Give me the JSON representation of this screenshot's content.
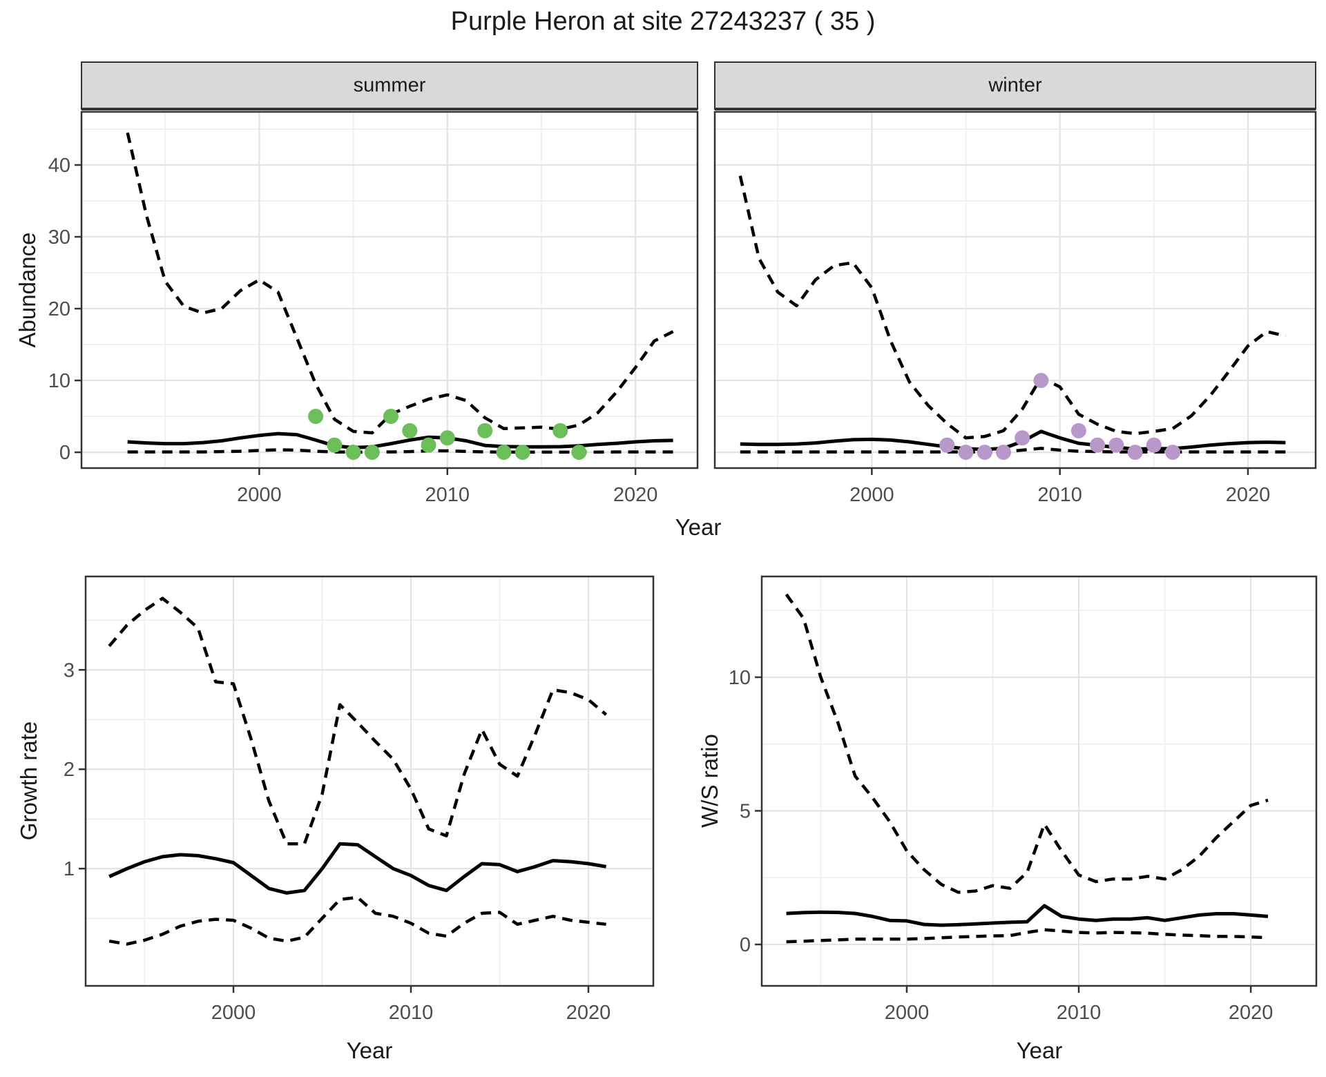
{
  "page": {
    "title": "Purple Heron at site 27243237 ( 35 )"
  },
  "colors": {
    "summer_point": "#6cbe5a",
    "winter_point": "#b897c9",
    "ci_line": "#000000",
    "fit_line": "#000000",
    "strip_bg": "#d9d9d9",
    "strip_text": "#1a1a1a",
    "panel_border": "#333333",
    "grid_major": "#e3e3e3",
    "grid_minor": "#f0f0f0",
    "tick_label": "#4d4d4d",
    "title": "#1a1a1a"
  },
  "chart_data": [
    {
      "type": "line",
      "facet": "summer",
      "xlabel": "Year",
      "ylabel": "Abundance",
      "x_ticks": [
        2000,
        2010,
        2020
      ],
      "x_minor_ticks": [
        1995,
        2005,
        2015
      ],
      "y_ticks": [
        0,
        10,
        20,
        30,
        40
      ],
      "y_minor_ticks": [
        5,
        15,
        25,
        35,
        45
      ],
      "xlim": [
        1990.55,
        2023.3
      ],
      "ylim": [
        -2.2,
        47.4
      ],
      "grid": true,
      "years": [
        1993,
        1994,
        1995,
        1996,
        1997,
        1998,
        1999,
        2000,
        2001,
        2002,
        2003,
        2004,
        2005,
        2006,
        2007,
        2008,
        2009,
        2010,
        2011,
        2012,
        2013,
        2014,
        2015,
        2016,
        2017,
        2018,
        2019,
        2020,
        2021,
        2022
      ],
      "series": [
        {
          "name": "upper_95_ci",
          "style": "dashed",
          "values": [
            44.5,
            33,
            23.8,
            20.3,
            19.4,
            20.0,
            22.5,
            24.0,
            22.3,
            15.9,
            9.5,
            4.6,
            2.9,
            2.7,
            5.3,
            6.4,
            7.4,
            8.0,
            7.2,
            4.8,
            3.3,
            3.4,
            3.5,
            3.2,
            3.8,
            5.5,
            8.4,
            11.8,
            15.5,
            16.8
          ]
        },
        {
          "name": "trend",
          "style": "solid",
          "values": [
            1.45,
            1.3,
            1.2,
            1.2,
            1.35,
            1.6,
            2.0,
            2.35,
            2.6,
            2.45,
            1.7,
            0.9,
            0.65,
            0.75,
            1.2,
            1.7,
            2.1,
            2.0,
            1.6,
            0.95,
            0.8,
            0.75,
            0.75,
            0.78,
            0.9,
            1.1,
            1.25,
            1.45,
            1.6,
            1.65
          ]
        },
        {
          "name": "lower_95_ci",
          "style": "dashed",
          "values": [
            0.05,
            0.05,
            0.05,
            0.05,
            0.05,
            0.1,
            0.15,
            0.25,
            0.35,
            0.3,
            0.15,
            0.05,
            0.02,
            0.02,
            0.05,
            0.1,
            0.2,
            0.2,
            0.12,
            0.05,
            0.02,
            0.02,
            0.02,
            0.02,
            0.02,
            0.02,
            0.05,
            0.05,
            0.05,
            0.05
          ]
        }
      ],
      "points": {
        "name": "observed_counts",
        "x": [
          2003,
          2004,
          2005,
          2006,
          2007,
          2008,
          2009,
          2010,
          2012,
          2013,
          2014,
          2016,
          2017
        ],
        "y": [
          5,
          1,
          0,
          0,
          5,
          3,
          1,
          2,
          3,
          0,
          0,
          3,
          0
        ]
      }
    },
    {
      "type": "line",
      "facet": "winter",
      "xlabel": "Year",
      "ylabel": "Abundance",
      "x_ticks": [
        2000,
        2010,
        2020
      ],
      "x_minor_ticks": [
        1995,
        2005,
        2015
      ],
      "y_ticks": [
        0,
        10,
        20,
        30,
        40
      ],
      "y_minor_ticks": [
        5,
        15,
        25,
        35,
        45
      ],
      "xlim": [
        1991.65,
        2023.6
      ],
      "ylim": [
        -2.2,
        47.4
      ],
      "grid": true,
      "years": [
        1993,
        1994,
        1995,
        1996,
        1997,
        1998,
        1999,
        2000,
        2001,
        2002,
        2003,
        2004,
        2005,
        2006,
        2007,
        2008,
        2009,
        2010,
        2011,
        2012,
        2013,
        2014,
        2015,
        2016,
        2017,
        2018,
        2019,
        2020,
        2021,
        2022
      ],
      "series": [
        {
          "name": "upper_95_ci",
          "style": "dashed",
          "values": [
            38.5,
            27.0,
            22.3,
            20.4,
            24.0,
            26.0,
            26.4,
            22.9,
            15.5,
            9.8,
            6.5,
            4.0,
            2.0,
            2.2,
            3.0,
            6.0,
            10.4,
            9.1,
            5.3,
            3.9,
            2.9,
            2.6,
            2.9,
            3.3,
            5.1,
            7.9,
            11.3,
            14.8,
            16.8,
            16.2
          ]
        },
        {
          "name": "trend",
          "style": "solid",
          "values": [
            1.15,
            1.1,
            1.1,
            1.15,
            1.3,
            1.55,
            1.75,
            1.8,
            1.7,
            1.45,
            1.1,
            0.75,
            0.5,
            0.4,
            0.55,
            1.5,
            2.9,
            2.0,
            1.25,
            0.97,
            0.67,
            0.45,
            0.5,
            0.5,
            0.73,
            1.0,
            1.2,
            1.35,
            1.4,
            1.35
          ]
        },
        {
          "name": "lower_95_ci",
          "style": "dashed",
          "values": [
            0.05,
            0.05,
            0.05,
            0.05,
            0.05,
            0.05,
            0.05,
            0.05,
            0.05,
            0.05,
            0.05,
            0.05,
            0.05,
            0.05,
            0.05,
            0.3,
            0.55,
            0.3,
            0.15,
            0.1,
            0.05,
            0.05,
            0.05,
            0.05,
            0.05,
            0.05,
            0.05,
            0.05,
            0.05,
            0.05
          ]
        }
      ],
      "points": {
        "name": "observed_counts",
        "x": [
          2004,
          2005,
          2006,
          2007,
          2008,
          2009,
          2011,
          2012,
          2013,
          2014,
          2015,
          2016
        ],
        "y": [
          1,
          0,
          0,
          0,
          2,
          10,
          3,
          1,
          1,
          0,
          1,
          0
        ]
      }
    },
    {
      "type": "line",
      "facet": null,
      "xlabel": "Year",
      "ylabel": "Growth rate",
      "x_ticks": [
        2000,
        2010,
        2020
      ],
      "x_minor_ticks": [
        1995,
        2005,
        2015
      ],
      "y_ticks": [
        1,
        2,
        3
      ],
      "y_minor_ticks": [
        0.5,
        1.5,
        2.5,
        3.5
      ],
      "xlim": [
        1991.67,
        2023.66
      ],
      "ylim": [
        -0.18,
        3.94
      ],
      "grid": true,
      "years": [
        1993,
        1994,
        1995,
        1996,
        1997,
        1998,
        1999,
        2000,
        2001,
        2002,
        2003,
        2004,
        2005,
        2006,
        2007,
        2008,
        2009,
        2010,
        2011,
        2012,
        2013,
        2014,
        2015,
        2016,
        2017,
        2018,
        2019,
        2020,
        2021
      ],
      "series": [
        {
          "name": "upper_95_ci",
          "style": "dashed",
          "values": [
            3.24,
            3.45,
            3.6,
            3.72,
            3.58,
            3.42,
            2.88,
            2.86,
            2.3,
            1.68,
            1.25,
            1.25,
            1.75,
            2.65,
            2.47,
            2.28,
            2.1,
            1.8,
            1.4,
            1.33,
            1.95,
            2.4,
            2.05,
            1.93,
            2.35,
            2.8,
            2.77,
            2.7,
            2.55
          ]
        },
        {
          "name": "trend",
          "style": "solid",
          "values": [
            0.92,
            1.0,
            1.07,
            1.12,
            1.14,
            1.13,
            1.1,
            1.06,
            0.93,
            0.8,
            0.755,
            0.78,
            1.0,
            1.25,
            1.24,
            1.12,
            1.0,
            0.93,
            0.83,
            0.78,
            0.92,
            1.05,
            1.04,
            0.97,
            1.02,
            1.08,
            1.07,
            1.05,
            1.02
          ]
        },
        {
          "name": "lower_95_ci",
          "style": "dashed",
          "values": [
            0.27,
            0.24,
            0.28,
            0.34,
            0.42,
            0.47,
            0.49,
            0.48,
            0.4,
            0.3,
            0.27,
            0.31,
            0.5,
            0.69,
            0.71,
            0.55,
            0.52,
            0.45,
            0.35,
            0.32,
            0.45,
            0.55,
            0.56,
            0.44,
            0.48,
            0.52,
            0.48,
            0.46,
            0.44
          ]
        }
      ],
      "points": null
    },
    {
      "type": "line",
      "facet": null,
      "xlabel": "Year",
      "ylabel": "W/S ratio",
      "x_ticks": [
        2000,
        2010,
        2020
      ],
      "x_minor_ticks": [
        1995,
        2005,
        2015
      ],
      "y_ticks": [
        0,
        5,
        10
      ],
      "y_minor_ticks": [
        2.5,
        7.5,
        12.5
      ],
      "xlim": [
        1991.57,
        2023.81
      ],
      "ylim": [
        -1.55,
        13.77
      ],
      "grid": true,
      "years": [
        1993,
        1994,
        1995,
        1996,
        1997,
        1998,
        1999,
        2000,
        2001,
        2002,
        2003,
        2004,
        2005,
        2006,
        2007,
        2008,
        2009,
        2010,
        2011,
        2012,
        2013,
        2014,
        2015,
        2016,
        2017,
        2018,
        2019,
        2020,
        2021
      ],
      "series": [
        {
          "name": "upper_95_ci",
          "style": "dashed",
          "values": [
            13.1,
            12.2,
            10.0,
            8.3,
            6.3,
            5.5,
            4.6,
            3.5,
            2.8,
            2.25,
            1.95,
            2.0,
            2.2,
            2.1,
            2.7,
            4.5,
            3.5,
            2.6,
            2.35,
            2.45,
            2.45,
            2.55,
            2.45,
            2.8,
            3.3,
            4.0,
            4.6,
            5.2,
            5.4
          ]
        },
        {
          "name": "trend",
          "style": "solid",
          "values": [
            1.16,
            1.19,
            1.21,
            1.2,
            1.16,
            1.05,
            0.9,
            0.88,
            0.75,
            0.72,
            0.74,
            0.77,
            0.8,
            0.83,
            0.85,
            1.45,
            1.05,
            0.95,
            0.9,
            0.95,
            0.95,
            1.0,
            0.9,
            1.0,
            1.1,
            1.15,
            1.15,
            1.1,
            1.05
          ]
        },
        {
          "name": "lower_95_ci",
          "style": "dashed",
          "values": [
            0.1,
            0.12,
            0.15,
            0.17,
            0.2,
            0.2,
            0.2,
            0.2,
            0.22,
            0.25,
            0.28,
            0.3,
            0.32,
            0.33,
            0.45,
            0.55,
            0.5,
            0.45,
            0.43,
            0.45,
            0.44,
            0.42,
            0.38,
            0.35,
            0.33,
            0.3,
            0.3,
            0.28,
            0.25
          ]
        }
      ],
      "points": null
    }
  ]
}
